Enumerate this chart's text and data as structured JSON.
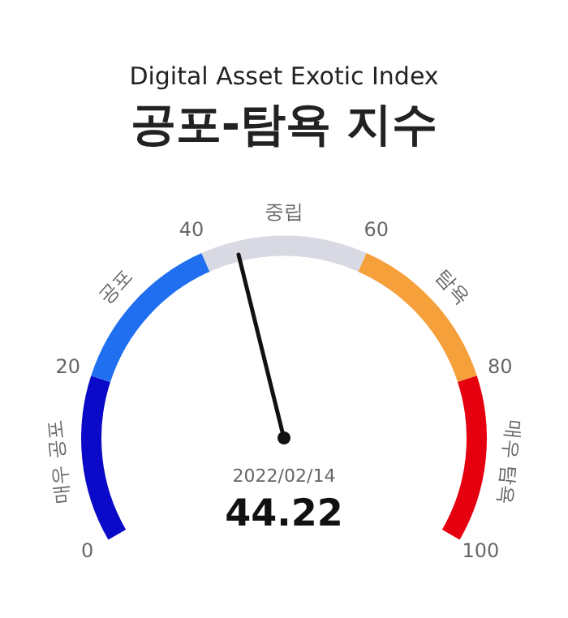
{
  "chart_data": {
    "type": "donut",
    "subtitle": "Digital Asset Exotic Index",
    "title": "공포-탐욕 지수",
    "categories": [
      "매우 공포",
      "공포",
      "중립",
      "탐욕",
      "매우 탐욕"
    ],
    "values": [
      20,
      20,
      20,
      20,
      20
    ],
    "colors": [
      "#0a0ac8",
      "#1f6ff0",
      "#d9d9e3",
      "#f6a03c",
      "#e6000f"
    ],
    "needle": "중립",
    "annotations": [
      "0",
      "20",
      "40",
      "60",
      "80",
      "100",
      "2022/02/14",
      "44.22"
    ],
    "legend": false
  }
}
